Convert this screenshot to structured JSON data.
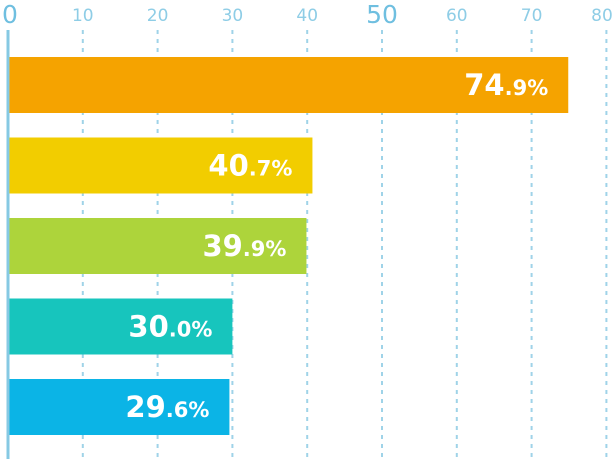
{
  "chart_data": {
    "type": "bar",
    "orientation": "horizontal",
    "xlim": [
      0,
      80
    ],
    "ticks": [
      0,
      10,
      20,
      30,
      40,
      50,
      60,
      70,
      80
    ],
    "major_ticks": [
      0,
      50
    ],
    "grid": true,
    "values": [
      74.9,
      40.7,
      39.9,
      30.0,
      29.6
    ],
    "value_labels": [
      {
        "int": "74",
        "dec": ".9%"
      },
      {
        "int": "40",
        "dec": ".7%"
      },
      {
        "int": "39",
        "dec": ".9%"
      },
      {
        "int": "30",
        "dec": ".0%"
      },
      {
        "int": "29",
        "dec": ".6%"
      }
    ],
    "colors": [
      "#f5a300",
      "#f2cd00",
      "#add43b",
      "#17c5bd",
      "#0bb4e6"
    ],
    "grid_color": "#9fd3e8",
    "axis_color": "#86c9e3",
    "label_color": "#ffffff"
  }
}
